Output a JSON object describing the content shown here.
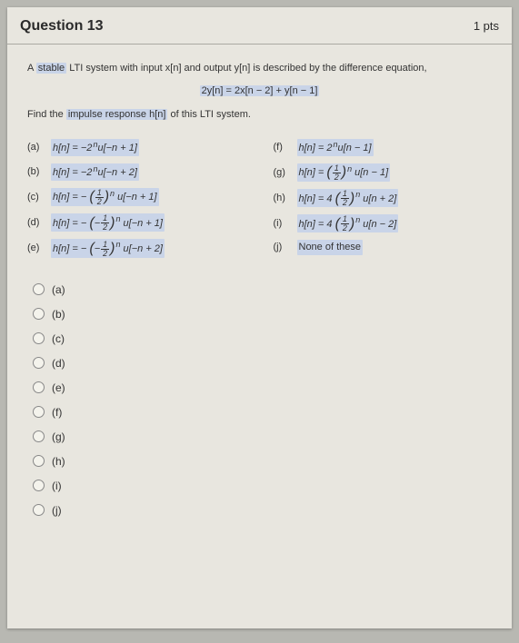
{
  "header": {
    "title": "Question 13",
    "points": "1 pts"
  },
  "prompt": {
    "p1": "A ",
    "stable": "stable",
    "p2": " LTI system with input x[n] and output y[n] is described by the difference equation,",
    "eq": "2y[n] = 2x[n − 2] + y[n − 1]",
    "p3": "Find the ",
    "impulse": "impulse response h[n]",
    "p4": " of this LTI system."
  },
  "opts": {
    "a": {
      "l": "(a)",
      "prefix": "h[n] = −2",
      "exp": "n",
      "suf": "u[−n + 1]"
    },
    "b": {
      "l": "(b)",
      "prefix": "h[n] = −2",
      "exp": "n",
      "suf": "u[−n + 2]"
    },
    "c": {
      "l": "(c)",
      "pre": "h[n] = − ",
      "suf": " u[−n + 1]"
    },
    "d": {
      "l": "(d)",
      "pre": "h[n] = − ",
      "suf": " u[−n + 1]"
    },
    "e": {
      "l": "(e)",
      "pre": "h[n] = − ",
      "suf": " u[−n + 2]"
    },
    "f": {
      "l": "(f)",
      "prefix": "h[n] = 2",
      "exp": "n",
      "suf": "u[n − 1]"
    },
    "g": {
      "l": "(g)",
      "pre": "h[n] = ",
      "suf": " u[n − 1]"
    },
    "h": {
      "l": "(h)",
      "pre": "h[n] = 4 ",
      "suf": " u[n + 2]"
    },
    "i": {
      "l": "(i)",
      "pre": "h[n] = 4 ",
      "suf": " u[n − 2]"
    },
    "j": {
      "l": "(j)",
      "txt": "None of these"
    }
  },
  "frac": {
    "num": "1",
    "den": "2",
    "negnum": "1"
  },
  "radios": {
    "a": "(a)",
    "b": "(b)",
    "c": "(c)",
    "d": "(d)",
    "e": "(e)",
    "f": "(f)",
    "g": "(g)",
    "h": "(h)",
    "i": "(i)",
    "j": "(j)"
  },
  "colors": {
    "highlight": "#c9d4e8",
    "paper": "#e8e6df",
    "bg": "#b8b8b2"
  }
}
